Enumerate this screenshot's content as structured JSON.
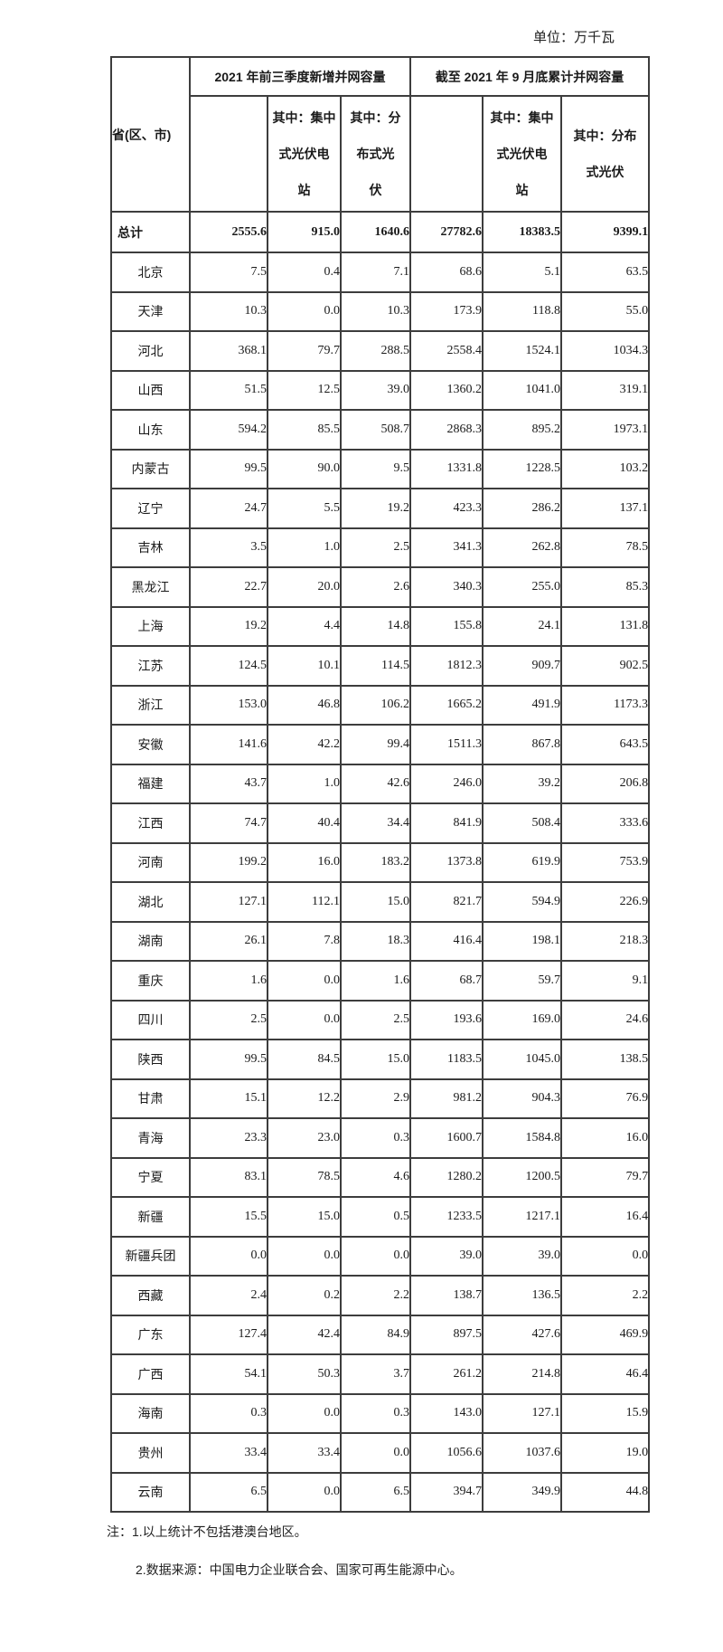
{
  "unit_label": "单位：万千瓦",
  "table": {
    "corner_header": "省(区、市)",
    "groups": [
      {
        "label": "2021 年前三季度新增并网容量",
        "sub": [
          "",
          "其中：集中\n式光伏电\n站",
          "其中：分\n布式光\n伏"
        ]
      },
      {
        "label": "截至 2021 年 9 月底累计并网容量",
        "sub": [
          "",
          "其中：集中\n式光伏电\n站",
          "其中：分布\n式光伏"
        ]
      }
    ],
    "total_row": {
      "label": "总计",
      "values": [
        "2555.6",
        "915.0",
        "1640.6",
        "27782.6",
        "18383.5",
        "9399.1"
      ]
    },
    "rows": [
      {
        "label": "北京",
        "values": [
          "7.5",
          "0.4",
          "7.1",
          "68.6",
          "5.1",
          "63.5"
        ]
      },
      {
        "label": "天津",
        "values": [
          "10.3",
          "0.0",
          "10.3",
          "173.9",
          "118.8",
          "55.0"
        ]
      },
      {
        "label": "河北",
        "values": [
          "368.1",
          "79.7",
          "288.5",
          "2558.4",
          "1524.1",
          "1034.3"
        ]
      },
      {
        "label": "山西",
        "values": [
          "51.5",
          "12.5",
          "39.0",
          "1360.2",
          "1041.0",
          "319.1"
        ]
      },
      {
        "label": "山东",
        "values": [
          "594.2",
          "85.5",
          "508.7",
          "2868.3",
          "895.2",
          "1973.1"
        ]
      },
      {
        "label": "内蒙古",
        "values": [
          "99.5",
          "90.0",
          "9.5",
          "1331.8",
          "1228.5",
          "103.2"
        ]
      },
      {
        "label": "辽宁",
        "values": [
          "24.7",
          "5.5",
          "19.2",
          "423.3",
          "286.2",
          "137.1"
        ]
      },
      {
        "label": "吉林",
        "values": [
          "3.5",
          "1.0",
          "2.5",
          "341.3",
          "262.8",
          "78.5"
        ]
      },
      {
        "label": "黑龙江",
        "values": [
          "22.7",
          "20.0",
          "2.6",
          "340.3",
          "255.0",
          "85.3"
        ]
      },
      {
        "label": "上海",
        "values": [
          "19.2",
          "4.4",
          "14.8",
          "155.8",
          "24.1",
          "131.8"
        ]
      },
      {
        "label": "江苏",
        "values": [
          "124.5",
          "10.1",
          "114.5",
          "1812.3",
          "909.7",
          "902.5"
        ]
      },
      {
        "label": "浙江",
        "values": [
          "153.0",
          "46.8",
          "106.2",
          "1665.2",
          "491.9",
          "1173.3"
        ]
      },
      {
        "label": "安徽",
        "values": [
          "141.6",
          "42.2",
          "99.4",
          "1511.3",
          "867.8",
          "643.5"
        ]
      },
      {
        "label": "福建",
        "values": [
          "43.7",
          "1.0",
          "42.6",
          "246.0",
          "39.2",
          "206.8"
        ]
      },
      {
        "label": "江西",
        "values": [
          "74.7",
          "40.4",
          "34.4",
          "841.9",
          "508.4",
          "333.6"
        ]
      },
      {
        "label": "河南",
        "values": [
          "199.2",
          "16.0",
          "183.2",
          "1373.8",
          "619.9",
          "753.9"
        ]
      },
      {
        "label": "湖北",
        "values": [
          "127.1",
          "112.1",
          "15.0",
          "821.7",
          "594.9",
          "226.9"
        ]
      },
      {
        "label": "湖南",
        "values": [
          "26.1",
          "7.8",
          "18.3",
          "416.4",
          "198.1",
          "218.3"
        ]
      },
      {
        "label": "重庆",
        "values": [
          "1.6",
          "0.0",
          "1.6",
          "68.7",
          "59.7",
          "9.1"
        ]
      },
      {
        "label": "四川",
        "values": [
          "2.5",
          "0.0",
          "2.5",
          "193.6",
          "169.0",
          "24.6"
        ]
      },
      {
        "label": "陕西",
        "values": [
          "99.5",
          "84.5",
          "15.0",
          "1183.5",
          "1045.0",
          "138.5"
        ]
      },
      {
        "label": "甘肃",
        "values": [
          "15.1",
          "12.2",
          "2.9",
          "981.2",
          "904.3",
          "76.9"
        ]
      },
      {
        "label": "青海",
        "values": [
          "23.3",
          "23.0",
          "0.3",
          "1600.7",
          "1584.8",
          "16.0"
        ]
      },
      {
        "label": "宁夏",
        "values": [
          "83.1",
          "78.5",
          "4.6",
          "1280.2",
          "1200.5",
          "79.7"
        ]
      },
      {
        "label": "新疆",
        "values": [
          "15.5",
          "15.0",
          "0.5",
          "1233.5",
          "1217.1",
          "16.4"
        ]
      },
      {
        "label": "新疆兵团",
        "values": [
          "0.0",
          "0.0",
          "0.0",
          "39.0",
          "39.0",
          "0.0"
        ]
      },
      {
        "label": "西藏",
        "values": [
          "2.4",
          "0.2",
          "2.2",
          "138.7",
          "136.5",
          "2.2"
        ]
      },
      {
        "label": "广东",
        "values": [
          "127.4",
          "42.4",
          "84.9",
          "897.5",
          "427.6",
          "469.9"
        ]
      },
      {
        "label": "广西",
        "values": [
          "54.1",
          "50.3",
          "3.7",
          "261.2",
          "214.8",
          "46.4"
        ]
      },
      {
        "label": "海南",
        "values": [
          "0.3",
          "0.0",
          "0.3",
          "143.0",
          "127.1",
          "15.9"
        ]
      },
      {
        "label": "贵州",
        "values": [
          "33.4",
          "33.4",
          "0.0",
          "1056.6",
          "1037.6",
          "19.0"
        ]
      },
      {
        "label": "云南",
        "values": [
          "6.5",
          "0.0",
          "6.5",
          "394.7",
          "349.9",
          "44.8"
        ]
      }
    ]
  },
  "notes": [
    "注：1.以上统计不包括港澳台地区。",
    "2.数据来源：中国电力企业联合会、国家可再生能源中心。"
  ]
}
